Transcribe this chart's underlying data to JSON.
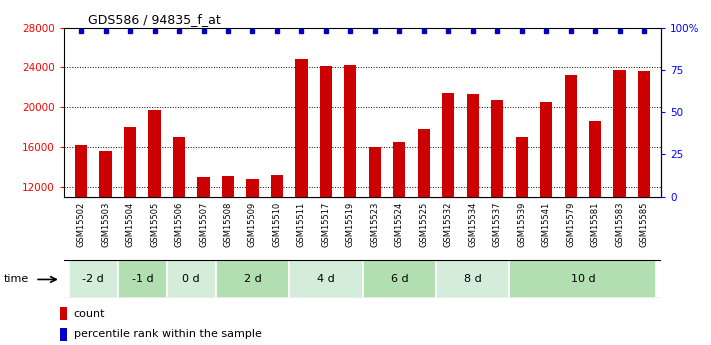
{
  "title": "GDS586 / 94835_f_at",
  "categories": [
    "GSM15502",
    "GSM15503",
    "GSM15504",
    "GSM15505",
    "GSM15506",
    "GSM15507",
    "GSM15508",
    "GSM15509",
    "GSM15510",
    "GSM15511",
    "GSM15517",
    "GSM15519",
    "GSM15523",
    "GSM15524",
    "GSM15525",
    "GSM15532",
    "GSM15534",
    "GSM15537",
    "GSM15539",
    "GSM15541",
    "GSM15579",
    "GSM15581",
    "GSM15583",
    "GSM15585"
  ],
  "values": [
    16200,
    15600,
    18000,
    19700,
    17000,
    13000,
    13100,
    12800,
    13200,
    24800,
    24100,
    24200,
    16000,
    16500,
    17800,
    21400,
    21300,
    20700,
    17000,
    20500,
    23200,
    18600,
    23700,
    23600
  ],
  "groups": [
    {
      "label": "-2 d",
      "start": 0,
      "end": 2,
      "color": "#d4edda"
    },
    {
      "label": "-1 d",
      "start": 2,
      "end": 4,
      "color": "#b2dfb2"
    },
    {
      "label": "0 d",
      "start": 4,
      "end": 6,
      "color": "#d4edda"
    },
    {
      "label": "2 d",
      "start": 6,
      "end": 9,
      "color": "#b2dfb2"
    },
    {
      "label": "4 d",
      "start": 9,
      "end": 12,
      "color": "#d4edda"
    },
    {
      "label": "6 d",
      "start": 12,
      "end": 15,
      "color": "#b2dfb2"
    },
    {
      "label": "8 d",
      "start": 15,
      "end": 18,
      "color": "#d4edda"
    },
    {
      "label": "10 d",
      "start": 18,
      "end": 24,
      "color": "#b2dfb2"
    }
  ],
  "bar_color": "#cc0000",
  "dot_color": "#0000cc",
  "ylim": [
    11000,
    28000
  ],
  "y_ticks": [
    12000,
    16000,
    20000,
    24000,
    28000
  ],
  "y_right_ticks": [
    0,
    25,
    50,
    75,
    100
  ],
  "y_right_labels": [
    "0",
    "25",
    "50",
    "75",
    "100%"
  ],
  "legend_count_label": "count",
  "legend_pct_label": "percentile rank within the sample",
  "xtick_bg_color": "#d0d0d0",
  "time_label": "time"
}
